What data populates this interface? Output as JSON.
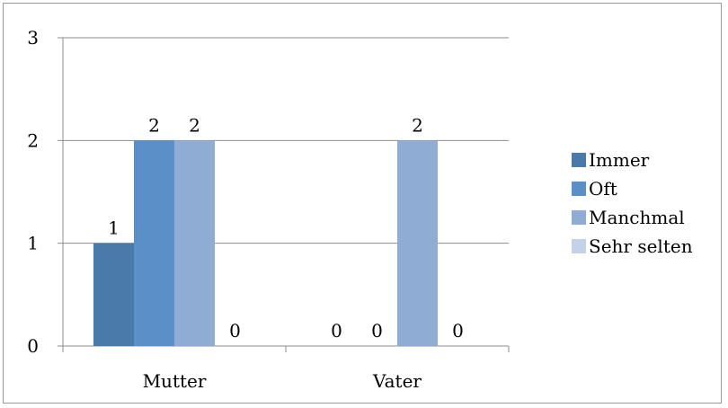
{
  "chart_data": {
    "type": "bar",
    "title": "",
    "xlabel": "",
    "ylabel": "",
    "categories": [
      "Mutter",
      "Vater"
    ],
    "series": [
      {
        "name": "Immer",
        "values": [
          1,
          0
        ],
        "color": "#4a7aa8"
      },
      {
        "name": "Oft",
        "values": [
          2,
          0
        ],
        "color": "#5b8fc8"
      },
      {
        "name": "Manchmal",
        "values": [
          2,
          2
        ],
        "color": "#8fadd4"
      },
      {
        "name": "Sehr selten",
        "values": [
          0,
          0
        ],
        "color": "#c3d2e6"
      }
    ],
    "ylim": [
      0,
      3
    ],
    "yticks": [
      0,
      1,
      2,
      3
    ],
    "grid": true,
    "legend_position": "right",
    "data_labels": true
  }
}
